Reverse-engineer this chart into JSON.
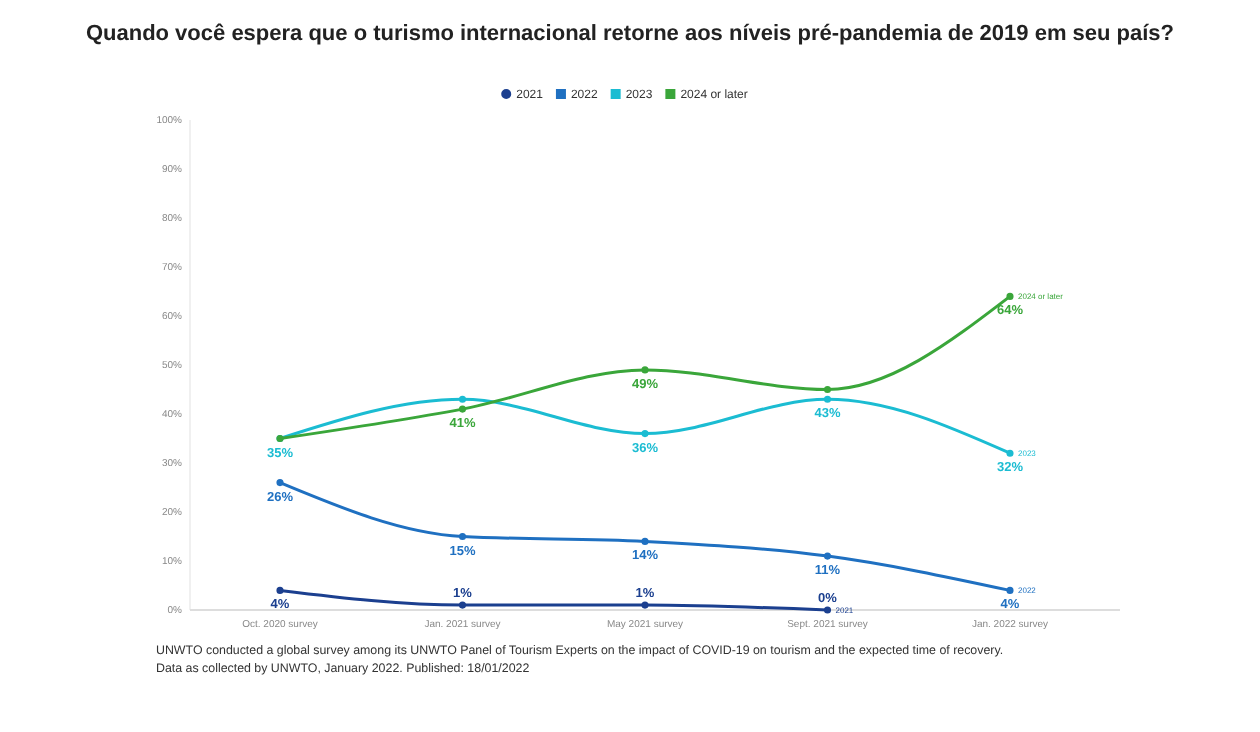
{
  "chart_data": {
    "type": "line",
    "title": "Quando você espera que o turismo internacional retorne aos níveis pré-pandemia de 2019 em seu país?",
    "categories": [
      "Oct. 2020 survey",
      "Jan. 2021 survey",
      "May 2021 survey",
      "Sept. 2021 survey",
      "Jan. 2022 survey"
    ],
    "series": [
      {
        "name": "2021",
        "color": "#1b3f8f",
        "values": [
          4,
          1,
          1,
          0,
          null
        ],
        "value_labels": [
          "4%",
          "1%",
          "1%",
          "0%",
          null
        ]
      },
      {
        "name": "2022",
        "color": "#1f70c1",
        "values": [
          26,
          15,
          14,
          11,
          4
        ],
        "value_labels": [
          "26%",
          "15%",
          "14%",
          "11%",
          "4%"
        ]
      },
      {
        "name": "2023",
        "color": "#1bbcd2",
        "values": [
          35,
          43,
          36,
          43,
          32
        ],
        "value_labels": [
          "35%",
          null,
          "36%",
          "43%",
          "32%"
        ]
      },
      {
        "name": "2024 or later",
        "color": "#3aa63a",
        "values": [
          35,
          41,
          49,
          45,
          64
        ],
        "value_labels": [
          null,
          "41%",
          "49%",
          null,
          "64%"
        ]
      }
    ],
    "ylim": [
      0,
      100
    ],
    "yticks": [
      {
        "value": 0,
        "label": "0%"
      },
      {
        "value": 10,
        "label": "10%"
      },
      {
        "value": 20,
        "label": "20%"
      },
      {
        "value": 30,
        "label": "30%"
      },
      {
        "value": 40,
        "label": "40%"
      },
      {
        "value": 50,
        "label": "50%"
      },
      {
        "value": 60,
        "label": "60%"
      },
      {
        "value": 70,
        "label": "70%"
      },
      {
        "value": 80,
        "label": "80%"
      },
      {
        "value": 90,
        "label": "90%"
      },
      {
        "value": 100,
        "label": "100%"
      }
    ],
    "legend": "top",
    "marker": "circle",
    "grid": false,
    "annotations": [
      "UNWTO conducted a global survey among its UNWTO Panel of Tourism Experts on the impact of COVID-19 on tourism and the expected time of recovery.",
      "Data as collected by UNWTO, January 2022. Published: 18/01/2022"
    ]
  }
}
